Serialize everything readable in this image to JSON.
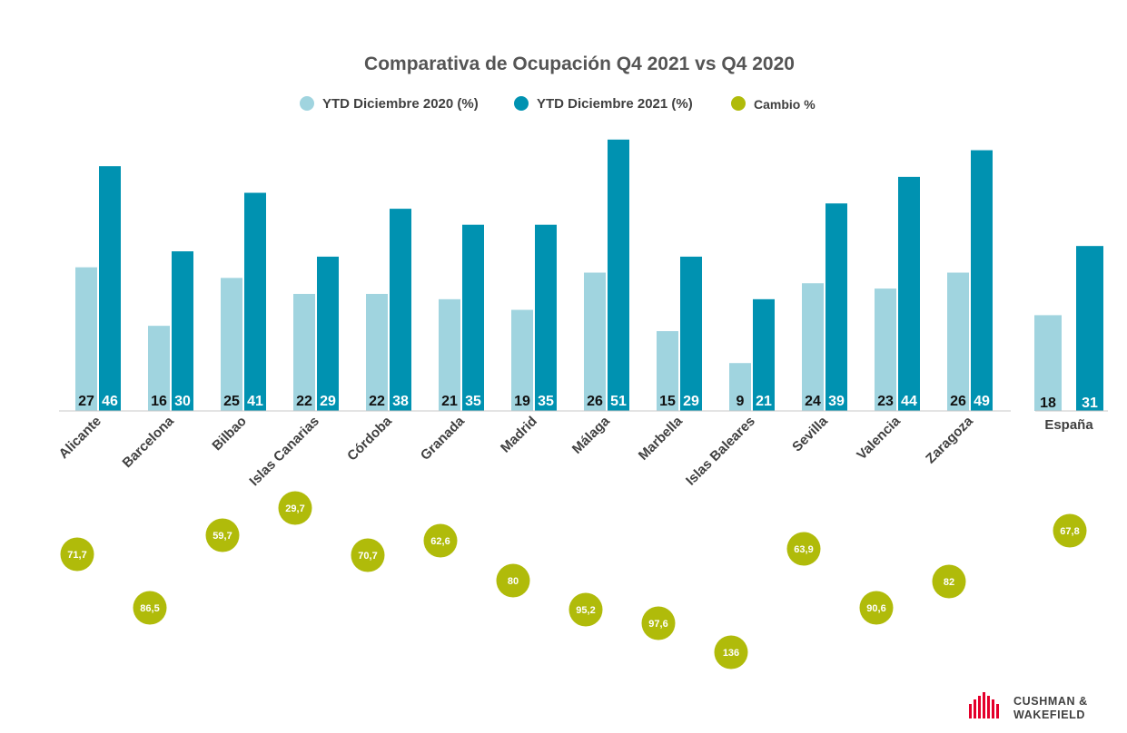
{
  "chart_data": {
    "type": "bar",
    "title": "Comparativa de Ocupación Q4 2021 vs Q4 2020",
    "legend": {
      "position": "top-center",
      "entries": [
        {
          "key": "s2020",
          "label": "YTD Diciembre 2020 (%)",
          "color": "#a0d4df"
        },
        {
          "key": "s2021",
          "label": "YTD Diciembre 2021 (%)",
          "color": "#0092b1"
        },
        {
          "key": "cambio",
          "label": "Cambio %",
          "color": "#b0bb0a"
        }
      ]
    },
    "categories": [
      "Alicante",
      "Barcelona",
      "Bilbao",
      "Islas Canarias",
      "Córdoba",
      "Granada",
      "Madrid",
      "Málaga",
      "Marbella",
      "Islas Baleares",
      "Sevilla",
      "Valencia",
      "Zaragoza"
    ],
    "series": [
      {
        "name": "YTD Diciembre 2020 (%)",
        "values": [
          27,
          16,
          25,
          22,
          22,
          21,
          19,
          26,
          15,
          9,
          24,
          23,
          26
        ]
      },
      {
        "name": "YTD Diciembre 2021 (%)",
        "values": [
          46,
          30,
          41,
          29,
          38,
          35,
          35,
          51,
          29,
          21,
          39,
          44,
          49
        ]
      },
      {
        "name": "Cambio %",
        "values": [
          "71,7",
          "86,5",
          "59,7",
          "29,7",
          "70,7",
          "62,6",
          "80",
          "95,2",
          "97,6",
          "136",
          "63,9",
          "90,6",
          "82"
        ]
      }
    ],
    "total": {
      "category": "España",
      "values": [
        18,
        31
      ],
      "cambio": "67,8"
    },
    "ylim": [
      0,
      52
    ],
    "grid": false
  },
  "brand": {
    "line1": "CUSHMAN &",
    "line2": "WAKEFIELD",
    "color": "#e4002b",
    "icon": "cushman-wakefield-logo-icon"
  }
}
